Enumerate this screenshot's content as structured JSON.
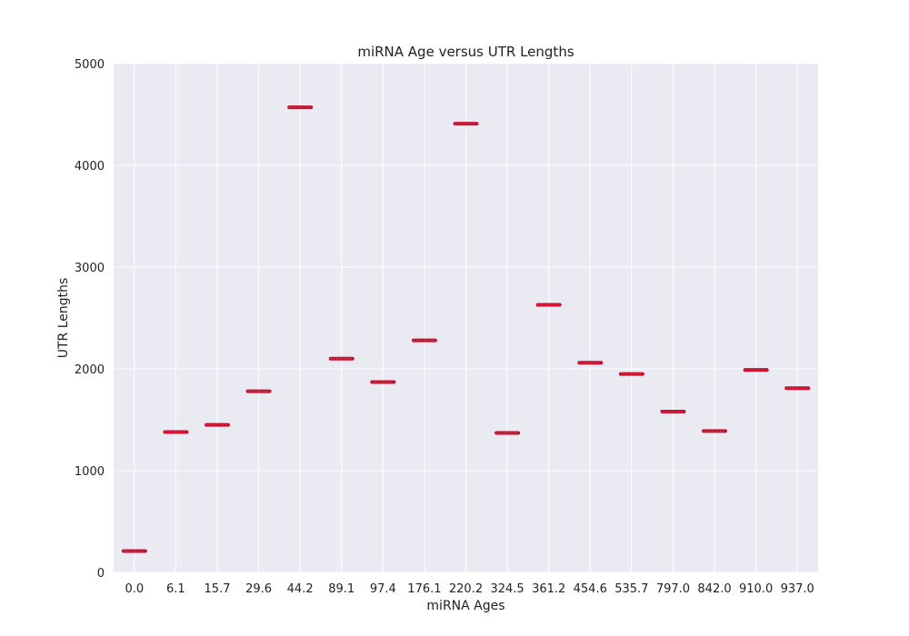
{
  "chart_data": {
    "type": "scatter",
    "title": "miRNA Age versus UTR Lengths",
    "xlabel": "miRNA Ages",
    "ylabel": "UTR Lengths",
    "categories": [
      "0.0",
      "6.1",
      "15.7",
      "29.6",
      "44.2",
      "89.1",
      "97.4",
      "176.1",
      "220.2",
      "324.5",
      "361.2",
      "454.6",
      "535.7",
      "797.0",
      "842.0",
      "910.0",
      "937.0"
    ],
    "values": [
      210,
      1380,
      1450,
      1780,
      4570,
      2100,
      1870,
      2280,
      4410,
      1370,
      2630,
      2060,
      1950,
      1580,
      1390,
      1990,
      1810
    ],
    "ylim": [
      0,
      5000
    ],
    "yticks": [
      0,
      1000,
      2000,
      3000,
      4000,
      5000
    ],
    "grid": true,
    "legend": "none",
    "colors": {
      "background": "#eaeaf2",
      "grid": "#ffffff",
      "marker": "#c8102e"
    }
  }
}
